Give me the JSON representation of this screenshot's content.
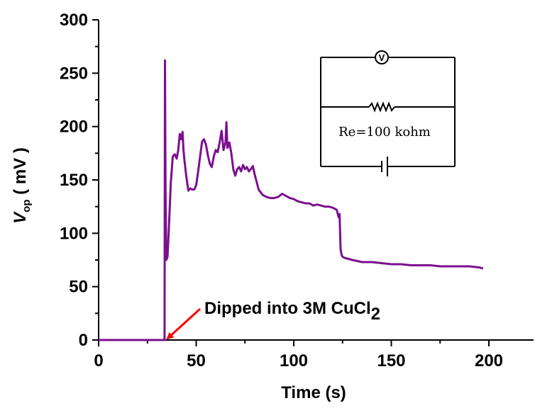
{
  "chart_data": {
    "type": "line",
    "title": "",
    "xlabel": "Time (s)",
    "ylabel": {
      "main": "V",
      "subscript": "op",
      "units": " ( mV )"
    },
    "xlim": [
      0,
      220
    ],
    "ylim": [
      0,
      300
    ],
    "x_ticks": [
      0,
      50,
      100,
      150,
      200
    ],
    "y_ticks": [
      0,
      50,
      100,
      150,
      200,
      250,
      300
    ],
    "grid": false,
    "series": [
      {
        "color": "#7b0f8f",
        "x": [
          0,
          33.8,
          34.0,
          34.3,
          34.7,
          35.3,
          36.0,
          37.0,
          38.0,
          39.0,
          40.0,
          40.8,
          41.6,
          42.4,
          43.0,
          43.5,
          44.0,
          45.0,
          46.0,
          47.0,
          48.0,
          49.0,
          50.0,
          51.0,
          52.0,
          53.0,
          54.0,
          55.0,
          56.0,
          57.0,
          58.0,
          59.0,
          60.0,
          61.0,
          62.0,
          63.0,
          64.0,
          65.0,
          65.5,
          66.0,
          67.0,
          68.0,
          69.0,
          70.0,
          71.0,
          72.0,
          73.0,
          74.0,
          75.0,
          76.0,
          77.0,
          78.0,
          79.0,
          80.0,
          81.0,
          82.0,
          84.0,
          86.0,
          88.0,
          90.0,
          92.0,
          94.0,
          96.0,
          98.0,
          100.0,
          102.0,
          104.0,
          106.0,
          108.0,
          110.0,
          112.0,
          114.0,
          116.0,
          118.0,
          120.0,
          122.0,
          123.0,
          123.5,
          124.0,
          124.5,
          125.0,
          126.0,
          128.0,
          130.0,
          135.0,
          140.0,
          145.0,
          150.0,
          155.0,
          160.0,
          165.0,
          170.0,
          175.0,
          178.0,
          180.0,
          182.0,
          185.0,
          190.0,
          195.0,
          197.0
        ],
        "y": [
          0,
          0,
          262,
          140,
          75,
          78,
          105,
          148,
          172,
          174,
          170,
          178,
          193,
          188,
          195,
          178,
          168,
          152,
          140,
          142,
          141,
          141,
          145,
          158,
          172,
          186,
          188,
          183,
          173,
          165,
          162,
          172,
          178,
          176,
          185,
          196,
          178,
          185,
          204,
          180,
          185,
          175,
          160,
          154,
          160,
          162,
          158,
          164,
          160,
          162,
          158,
          160,
          163,
          155,
          148,
          141,
          136,
          134,
          133,
          133,
          134,
          137,
          135,
          133,
          132,
          130,
          129,
          128,
          128,
          126,
          127,
          126,
          125,
          125,
          124,
          122,
          115,
          118,
          85,
          80,
          78,
          77,
          76,
          75,
          73,
          73,
          72,
          71,
          71,
          70,
          70,
          70,
          69,
          69,
          69,
          69,
          69,
          69,
          68,
          67
        ]
      }
    ],
    "annotation": {
      "text_main": "Dipped into 3M CuCl",
      "text_subscript": "2",
      "arrow_target": {
        "x": 34,
        "y": 0
      },
      "arrow_color": "#ff0000"
    },
    "inset_circuit": {
      "meter_symbol": "V",
      "resistor_label": "Re=100 kohm"
    }
  }
}
